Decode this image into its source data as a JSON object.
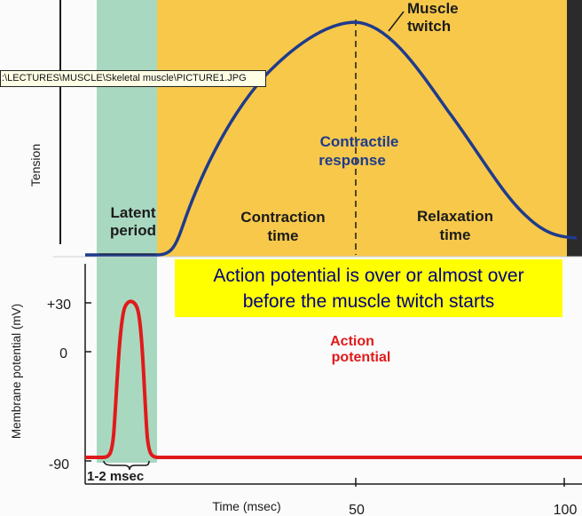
{
  "colors": {
    "latent_band": "#a9d8c0",
    "phase_band": "#f7c84a",
    "tension_curve": "#1f3b8c",
    "action_potential_curve": "#e01a1a",
    "label_dark": "#1b1b1b",
    "label_blue": "#1f3b8c",
    "label_red": "#e01a1a",
    "callout_bg": "#ffff00",
    "callout_text": "#000080"
  },
  "tooltip": {
    "path": ":\\LECTURES\\MUSCLE\\Skeletal muscle\\PICTURE1.JPG"
  },
  "top_panel": {
    "y_label": "Tension",
    "latent_line1": "Latent",
    "latent_line2": "period",
    "contraction_line1": "Contraction",
    "contraction_line2": "time",
    "relaxation_line1": "Relaxation",
    "relaxation_line2": "time",
    "contractile_line1": "Contractile",
    "contractile_line2": "response",
    "twitch_line1": "Muscle",
    "twitch_line2": "twitch"
  },
  "bottom_panel": {
    "y_label": "Membrane potential (mV)",
    "tick_plus30": "+30",
    "tick_zero": "0",
    "tick_minus90": "-90",
    "ap_line1": "Action",
    "ap_line2": "potential",
    "duration_label": "1-2 msec",
    "x_label": "Time (msec)",
    "x_tick_50": "50",
    "x_tick_100": "100"
  },
  "callout": {
    "line1": "Action potential is over or almost over",
    "line2": "before the muscle twitch starts"
  }
}
